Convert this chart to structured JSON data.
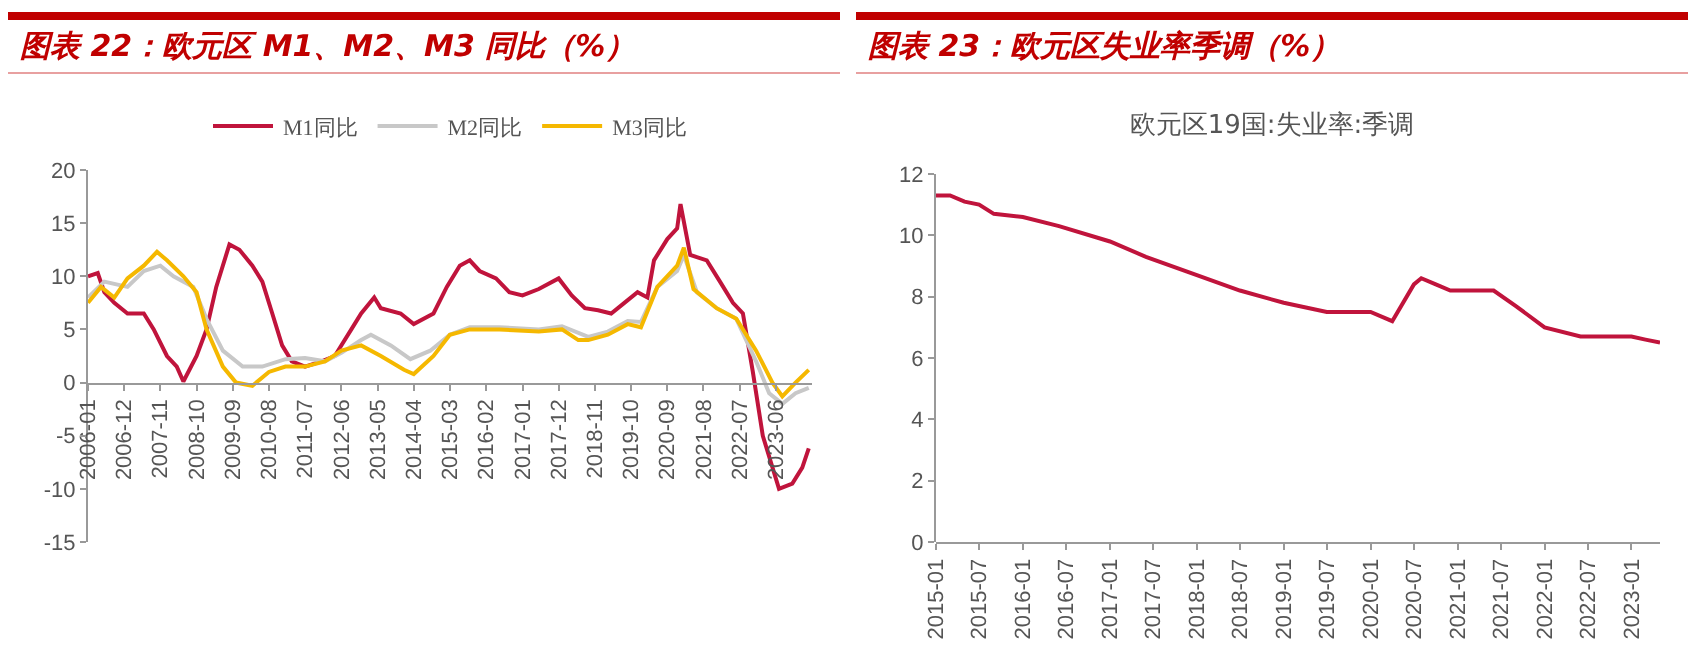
{
  "chart_data": [
    {
      "type": "line",
      "title": "图表 22：欧元区 M1、M2、M3 同比（%）",
      "legend": "top",
      "xlim": [
        "2006-01",
        "2024-05"
      ],
      "ylim": [
        -15,
        20
      ],
      "yticks": [
        -15,
        -10,
        -5,
        0,
        5,
        10,
        15,
        20
      ],
      "xticks": [
        "2006-01",
        "2006-12",
        "2007-11",
        "2008-10",
        "2009-09",
        "2010-08",
        "2011-07",
        "2012-06",
        "2013-05",
        "2014-04",
        "2015-03",
        "2016-02",
        "2017-01",
        "2017-12",
        "2018-11",
        "2019-10",
        "2020-09",
        "2021-08",
        "2022-07",
        "2023-06"
      ],
      "series": [
        {
          "name": "M1同比",
          "color": "#c0143c",
          "x": [
            "2006-01",
            "2006-04",
            "2006-06",
            "2006-09",
            "2007-01",
            "2007-06",
            "2007-09",
            "2008-01",
            "2008-04",
            "2008-06",
            "2008-10",
            "2009-01",
            "2009-04",
            "2009-08",
            "2009-11",
            "2010-03",
            "2010-06",
            "2010-09",
            "2010-12",
            "2011-03",
            "2011-07",
            "2011-12",
            "2012-04",
            "2012-09",
            "2012-12",
            "2013-04",
            "2013-06",
            "2013-12",
            "2014-04",
            "2014-10",
            "2015-02",
            "2015-06",
            "2015-09",
            "2015-12",
            "2016-05",
            "2016-09",
            "2017-01",
            "2017-06",
            "2017-12",
            "2018-04",
            "2018-08",
            "2018-12",
            "2019-04",
            "2019-08",
            "2019-12",
            "2020-03",
            "2020-05",
            "2020-09",
            "2020-12",
            "2021-01",
            "2021-04",
            "2021-09",
            "2022-01",
            "2022-05",
            "2022-08",
            "2022-11",
            "2023-02",
            "2023-07",
            "2023-11",
            "2024-02",
            "2024-04"
          ],
          "values": [
            10,
            10.3,
            8.5,
            7.5,
            6.5,
            6.5,
            5,
            2.5,
            1.5,
            0.1,
            2.5,
            5,
            9,
            13,
            12.5,
            11,
            9.5,
            6.5,
            3.5,
            2,
            1.5,
            2,
            2.5,
            5,
            6.5,
            8,
            7,
            6.5,
            5.5,
            6.5,
            9,
            11,
            11.5,
            10.5,
            9.8,
            8.5,
            8.2,
            8.8,
            9.8,
            8.2,
            7,
            6.8,
            6.5,
            7.5,
            8.5,
            8,
            11.5,
            13.5,
            14.5,
            16.8,
            12,
            11.5,
            9.5,
            7.5,
            6.5,
            1,
            -5,
            -10,
            -9.5,
            -8,
            -6.2
          ]
        },
        {
          "name": "M2同比",
          "color": "#c8c8c8",
          "x": [
            "2006-01",
            "2006-06",
            "2007-01",
            "2007-06",
            "2007-11",
            "2008-03",
            "2008-09",
            "2009-01",
            "2009-06",
            "2009-12",
            "2010-06",
            "2011-01",
            "2011-07",
            "2012-01",
            "2012-06",
            "2012-12",
            "2013-03",
            "2013-09",
            "2014-03",
            "2014-09",
            "2015-03",
            "2015-09",
            "2016-06",
            "2017-06",
            "2018-01",
            "2018-09",
            "2019-03",
            "2019-09",
            "2020-01",
            "2020-06",
            "2020-12",
            "2021-02",
            "2021-06",
            "2021-12",
            "2022-06",
            "2022-12",
            "2023-04",
            "2023-08",
            "2023-12",
            "2024-04"
          ],
          "values": [
            8,
            9.5,
            9,
            10.5,
            11,
            10,
            9,
            6,
            3,
            1.5,
            1.5,
            2.2,
            2.3,
            2,
            2.8,
            4,
            4.5,
            3.5,
            2.2,
            3,
            4.5,
            5.2,
            5.2,
            5,
            5.3,
            4.3,
            4.8,
            5.8,
            5.7,
            9,
            10.5,
            12,
            8.5,
            7,
            6,
            2,
            -1,
            -2,
            -1,
            -0.5
          ]
        },
        {
          "name": "M3同比",
          "color": "#f5b800",
          "x": [
            "2006-01",
            "2006-05",
            "2006-09",
            "2007-01",
            "2007-06",
            "2007-10",
            "2008-01",
            "2008-06",
            "2008-10",
            "2009-01",
            "2009-06",
            "2009-10",
            "2010-03",
            "2010-08",
            "2011-01",
            "2011-07",
            "2012-01",
            "2012-06",
            "2012-12",
            "2013-06",
            "2014-01",
            "2014-04",
            "2014-10",
            "2015-03",
            "2015-09",
            "2016-06",
            "2017-06",
            "2018-01",
            "2018-06",
            "2018-09",
            "2019-03",
            "2019-09",
            "2020-01",
            "2020-06",
            "2020-12",
            "2021-02",
            "2021-05",
            "2021-12",
            "2022-06",
            "2022-12",
            "2023-05",
            "2023-08",
            "2023-12",
            "2024-04"
          ],
          "values": [
            7.5,
            9,
            8,
            9.8,
            11,
            12.3,
            11.5,
            10,
            8.5,
            5,
            1.5,
            0,
            -0.3,
            1,
            1.5,
            1.5,
            2,
            3,
            3.5,
            2.5,
            1.2,
            0.8,
            2.5,
            4.5,
            5,
            5,
            4.8,
            5,
            4,
            4,
            4.5,
            5.5,
            5.2,
            9,
            11,
            12.7,
            8.8,
            7,
            6,
            3,
            0,
            -1.3,
            0,
            1.2
          ]
        }
      ]
    },
    {
      "type": "line",
      "title": "图表 23：欧元区失业率季调（%）",
      "subtitle": "欧元区19国:失业率:季调",
      "xlim": [
        "2015-01",
        "2023-05"
      ],
      "ylim": [
        0,
        12
      ],
      "yticks": [
        0,
        2,
        4,
        6,
        8,
        10,
        12
      ],
      "xticks": [
        "2015-01",
        "2015-07",
        "2016-01",
        "2016-07",
        "2017-01",
        "2017-07",
        "2018-01",
        "2018-07",
        "2019-01",
        "2019-07",
        "2020-01",
        "2020-07",
        "2021-01",
        "2021-07",
        "2022-01",
        "2022-07",
        "2023-01"
      ],
      "series": [
        {
          "color": "#c0143c",
          "x": [
            "2015-01",
            "2015-03",
            "2015-05",
            "2015-07",
            "2015-09",
            "2016-01",
            "2016-06",
            "2017-01",
            "2017-06",
            "2018-01",
            "2018-07",
            "2019-01",
            "2019-07",
            "2020-01",
            "2020-04",
            "2020-07",
            "2020-08",
            "2020-10",
            "2020-12",
            "2021-06",
            "2021-09",
            "2022-01",
            "2022-06",
            "2023-01",
            "2023-03",
            "2023-05"
          ],
          "values": [
            11.3,
            11.3,
            11.1,
            11,
            10.7,
            10.6,
            10.3,
            9.8,
            9.3,
            8.7,
            8.2,
            7.8,
            7.5,
            7.5,
            7.2,
            8.4,
            8.6,
            8.4,
            8.2,
            8.2,
            7.7,
            7,
            6.7,
            6.7,
            6.6,
            6.5
          ]
        }
      ]
    }
  ]
}
